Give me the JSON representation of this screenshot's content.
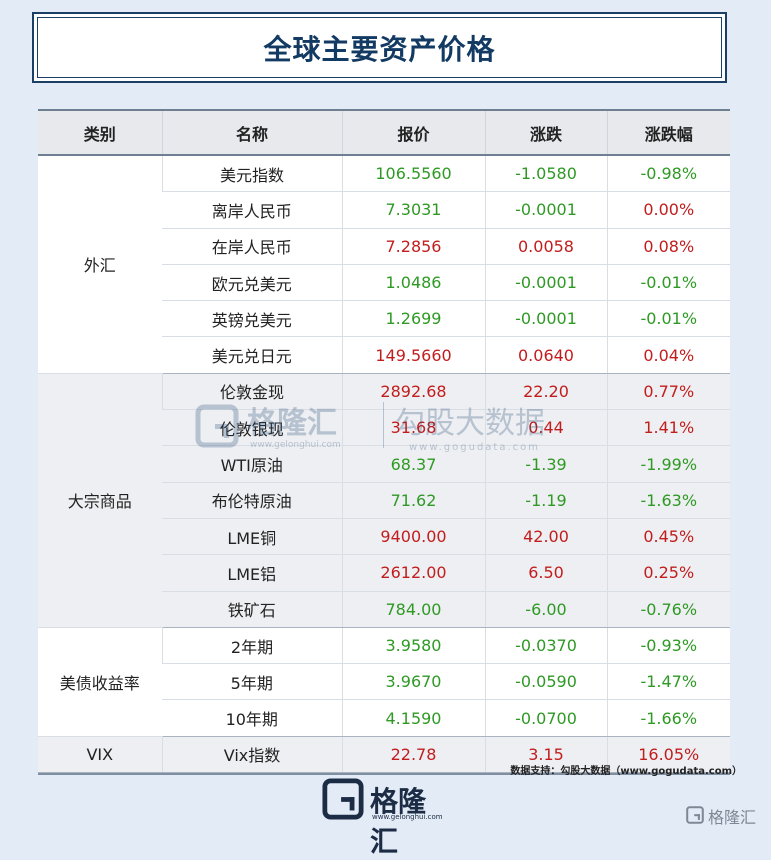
{
  "title": "全球主要资产价格",
  "headers": [
    "类别",
    "名称",
    "报价",
    "涨跌",
    "涨跌幅"
  ],
  "groups": [
    {
      "category": "外汇",
      "rows": [
        {
          "name": "美元指数",
          "price": "106.5560",
          "change": "-1.0580",
          "pct": "-0.98%",
          "price_dir": "down",
          "change_dir": "down",
          "pct_dir": "down"
        },
        {
          "name": "离岸人民币",
          "price": "7.3031",
          "change": "-0.0001",
          "pct": "0.00%",
          "price_dir": "down",
          "change_dir": "down",
          "pct_dir": "up"
        },
        {
          "name": "在岸人民币",
          "price": "7.2856",
          "change": "0.0058",
          "pct": "0.08%",
          "price_dir": "up",
          "change_dir": "up",
          "pct_dir": "up"
        },
        {
          "name": "欧元兑美元",
          "price": "1.0486",
          "change": "-0.0001",
          "pct": "-0.01%",
          "price_dir": "down",
          "change_dir": "down",
          "pct_dir": "down"
        },
        {
          "name": "英镑兑美元",
          "price": "1.2699",
          "change": "-0.0001",
          "pct": "-0.01%",
          "price_dir": "down",
          "change_dir": "down",
          "pct_dir": "down"
        },
        {
          "name": "美元兑日元",
          "price": "149.5660",
          "change": "0.0640",
          "pct": "0.04%",
          "price_dir": "up",
          "change_dir": "up",
          "pct_dir": "up"
        }
      ]
    },
    {
      "category": "大宗商品",
      "rows": [
        {
          "name": "伦敦金现",
          "price": "2892.68",
          "change": "22.20",
          "pct": "0.77%",
          "price_dir": "up",
          "change_dir": "up",
          "pct_dir": "up"
        },
        {
          "name": "伦敦银现",
          "price": "31.68",
          "change": "0.44",
          "pct": "1.41%",
          "price_dir": "up",
          "change_dir": "up",
          "pct_dir": "up"
        },
        {
          "name": "WTI原油",
          "price": "68.37",
          "change": "-1.39",
          "pct": "-1.99%",
          "price_dir": "down",
          "change_dir": "down",
          "pct_dir": "down"
        },
        {
          "name": "布伦特原油",
          "price": "71.62",
          "change": "-1.19",
          "pct": "-1.63%",
          "price_dir": "down",
          "change_dir": "down",
          "pct_dir": "down"
        },
        {
          "name": "LME铜",
          "price": "9400.00",
          "change": "42.00",
          "pct": "0.45%",
          "price_dir": "up",
          "change_dir": "up",
          "pct_dir": "up"
        },
        {
          "name": "LME铝",
          "price": "2612.00",
          "change": "6.50",
          "pct": "0.25%",
          "price_dir": "up",
          "change_dir": "up",
          "pct_dir": "up"
        },
        {
          "name": "铁矿石",
          "price": "784.00",
          "change": "-6.00",
          "pct": "-0.76%",
          "price_dir": "down",
          "change_dir": "down",
          "pct_dir": "down"
        }
      ]
    },
    {
      "category": "美债收益率",
      "rows": [
        {
          "name": "2年期",
          "price": "3.9580",
          "change": "-0.0370",
          "pct": "-0.93%",
          "price_dir": "down",
          "change_dir": "down",
          "pct_dir": "down"
        },
        {
          "name": "5年期",
          "price": "3.9670",
          "change": "-0.0590",
          "pct": "-1.47%",
          "price_dir": "down",
          "change_dir": "down",
          "pct_dir": "down"
        },
        {
          "name": "10年期",
          "price": "4.1590",
          "change": "-0.0700",
          "pct": "-1.66%",
          "price_dir": "down",
          "change_dir": "down",
          "pct_dir": "down"
        }
      ]
    },
    {
      "category": "VIX",
      "rows": [
        {
          "name": "Vix指数",
          "price": "22.78",
          "change": "3.15",
          "pct": "16.05%",
          "price_dir": "up",
          "change_dir": "up",
          "pct_dir": "up"
        }
      ]
    }
  ],
  "watermark": {
    "brand": "格隆汇",
    "brand_url": "www.gelonghui.com",
    "partner": "勾股大数据",
    "partner_url": "www.gogudata.com"
  },
  "source_note": "数据支持：勾股大数据（www.gogudata.com）",
  "footer_logo": {
    "name": "格隆汇",
    "url": "www.gelonghui.com"
  },
  "corner_logo": "格隆汇",
  "colors": {
    "up": "#c21d1d",
    "down": "#2e9a24",
    "title": "#123a63",
    "icon": "g-logo-icon"
  }
}
